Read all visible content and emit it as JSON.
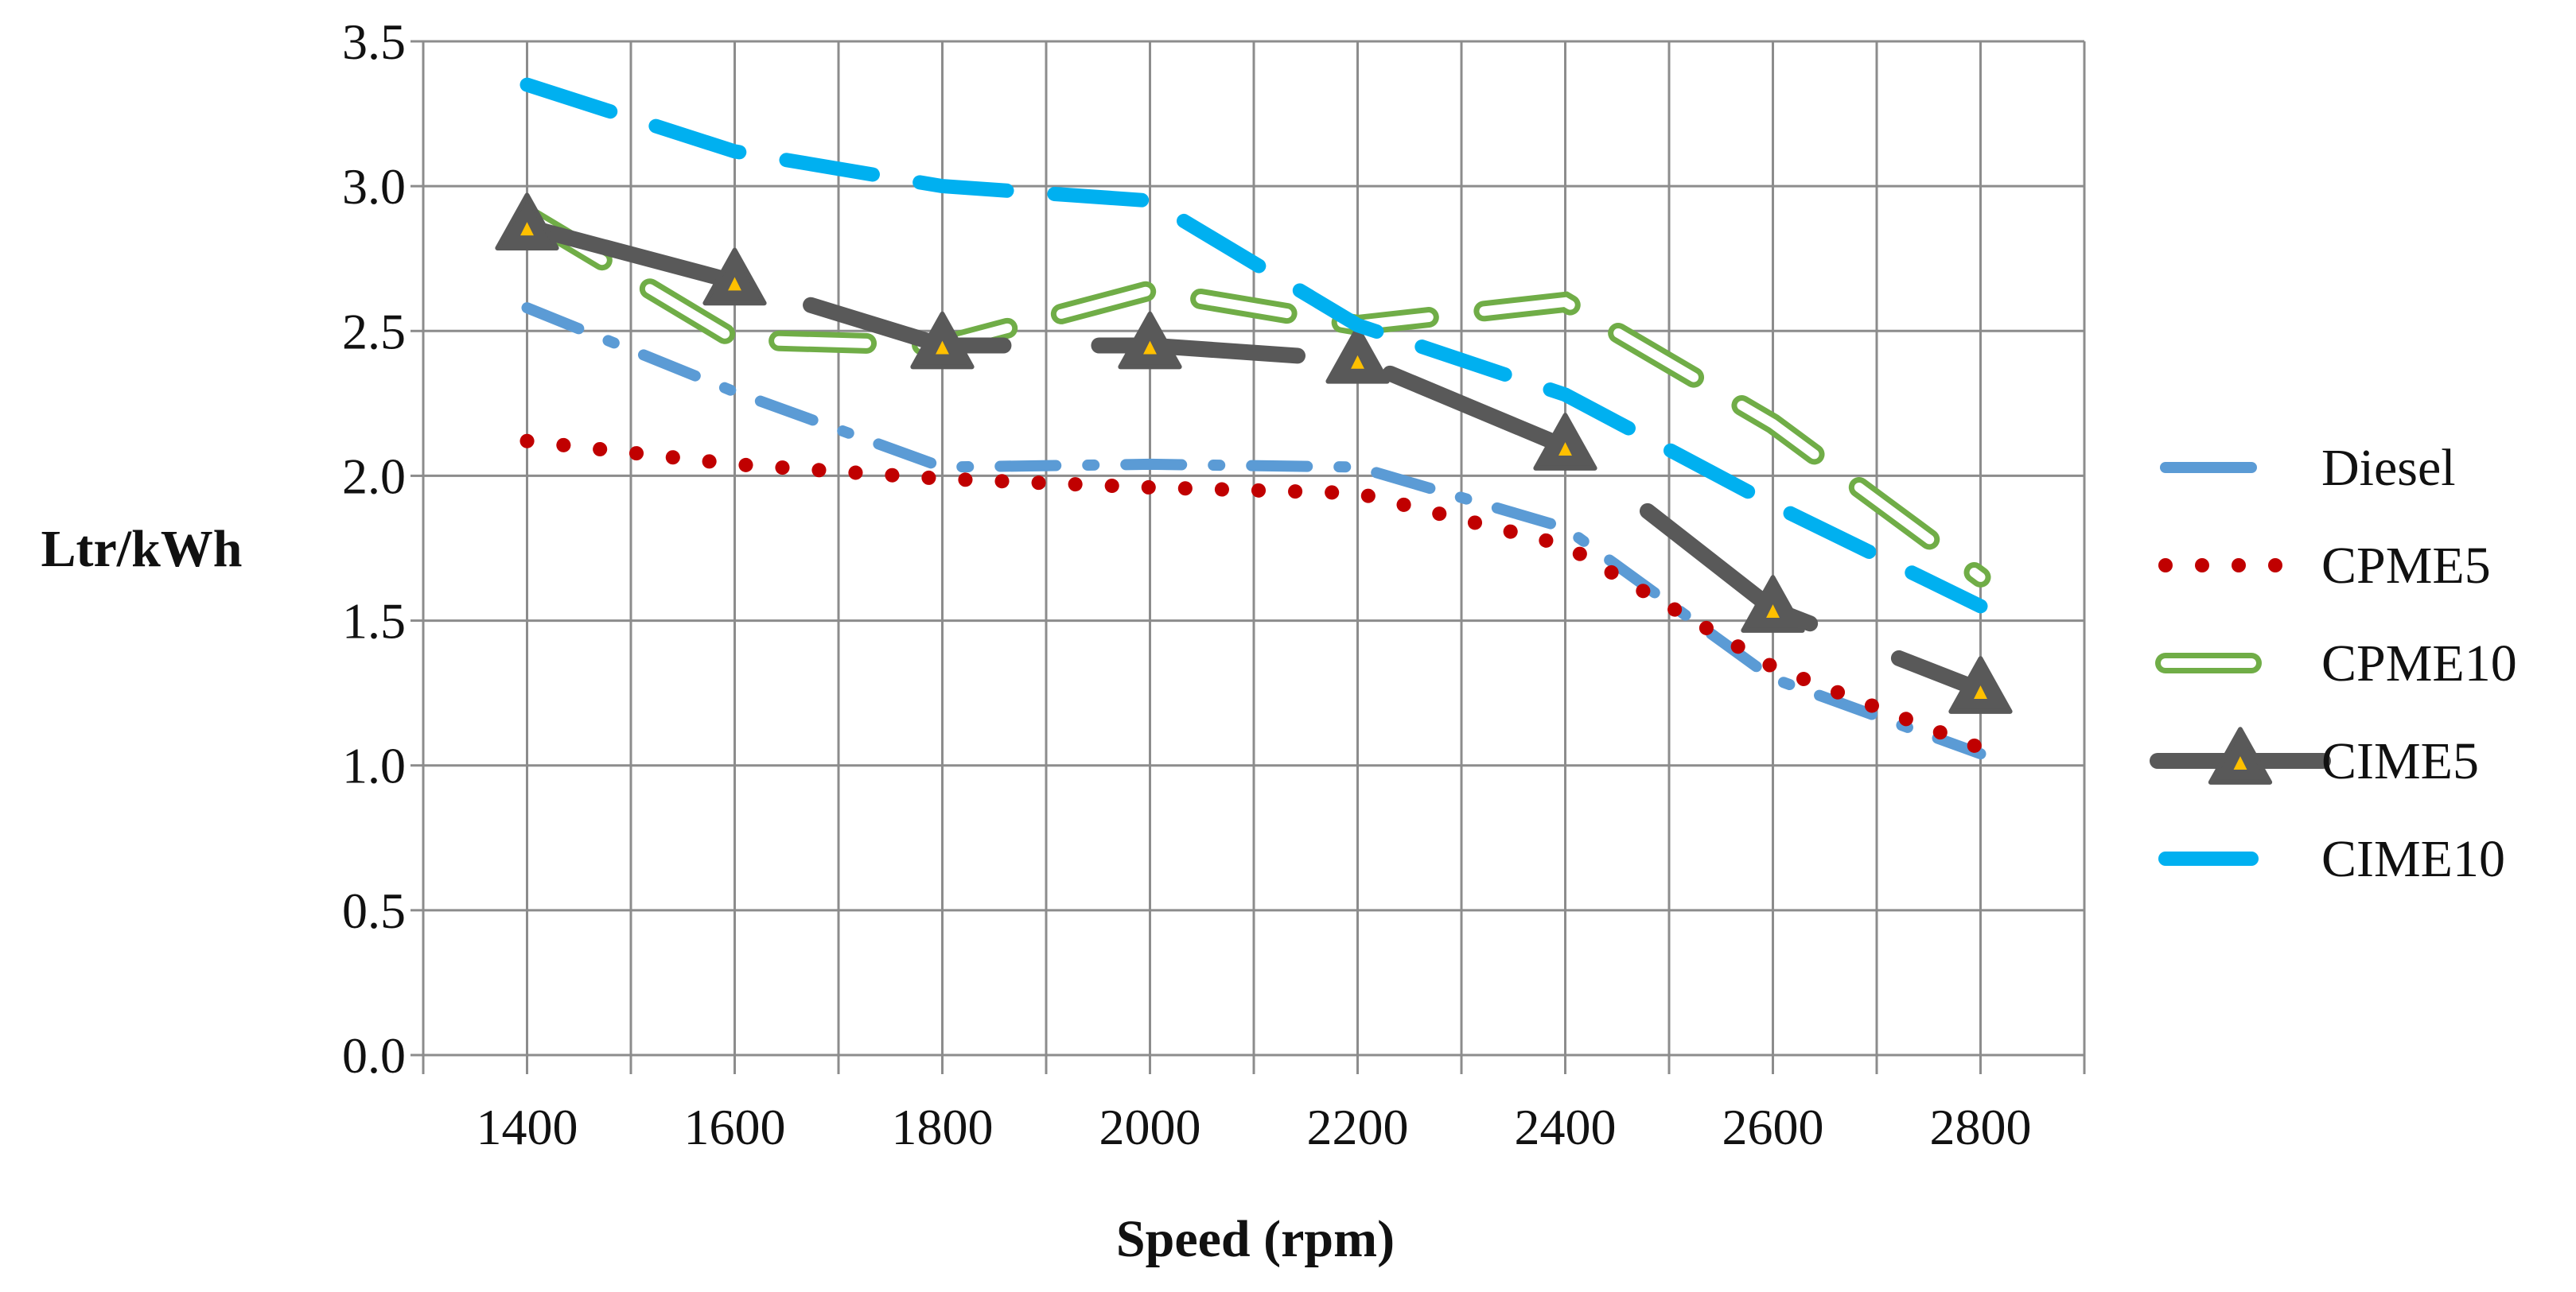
{
  "chart_data": {
    "type": "line",
    "title": "",
    "xlabel": "Speed (rpm)",
    "ylabel": "Ltr/kWh",
    "x": [
      1400,
      1600,
      1800,
      2000,
      2200,
      2400,
      2600,
      2800
    ],
    "x_tick_labels": [
      "1400",
      "1600",
      "1800",
      "2000",
      "2200",
      "2400",
      "2600",
      "2800"
    ],
    "xlim": [
      1300,
      2900
    ],
    "ylim": [
      0.0,
      3.5
    ],
    "y_tick_values": [
      0.0,
      0.5,
      1.0,
      1.5,
      2.0,
      2.5,
      3.0,
      3.5
    ],
    "y_tick_labels": [
      "0.0",
      "0.5",
      "1.0",
      "1.5",
      "2.0",
      "2.5",
      "3.0",
      "3.5"
    ],
    "grid": true,
    "legend_position": "right",
    "series": [
      {
        "name": "Diesel",
        "values": [
          2.58,
          2.29,
          2.03,
          2.04,
          2.03,
          1.82,
          1.3,
          1.04
        ],
        "color": "#5b9bd5",
        "style": "dash-dot"
      },
      {
        "name": "CPME5",
        "values": [
          2.12,
          2.04,
          1.99,
          1.96,
          1.94,
          1.76,
          1.34,
          1.06
        ],
        "color": "#c00000",
        "style": "round-dot"
      },
      {
        "name": "CPME10",
        "values": [
          2.9,
          2.47,
          2.45,
          2.64,
          2.52,
          2.6,
          2.18,
          1.65
        ],
        "color": "#70ad47",
        "style": "hollow-dash"
      },
      {
        "name": "CIME5",
        "values": [
          2.86,
          2.67,
          2.45,
          2.45,
          2.4,
          2.1,
          1.54,
          1.26
        ],
        "color": "#595959",
        "style": "solid-triangle"
      },
      {
        "name": "CIME10",
        "values": [
          3.35,
          3.12,
          3.0,
          2.95,
          2.52,
          2.28,
          1.9,
          1.55
        ],
        "color": "#00b0f0",
        "style": "long-dash"
      }
    ]
  }
}
